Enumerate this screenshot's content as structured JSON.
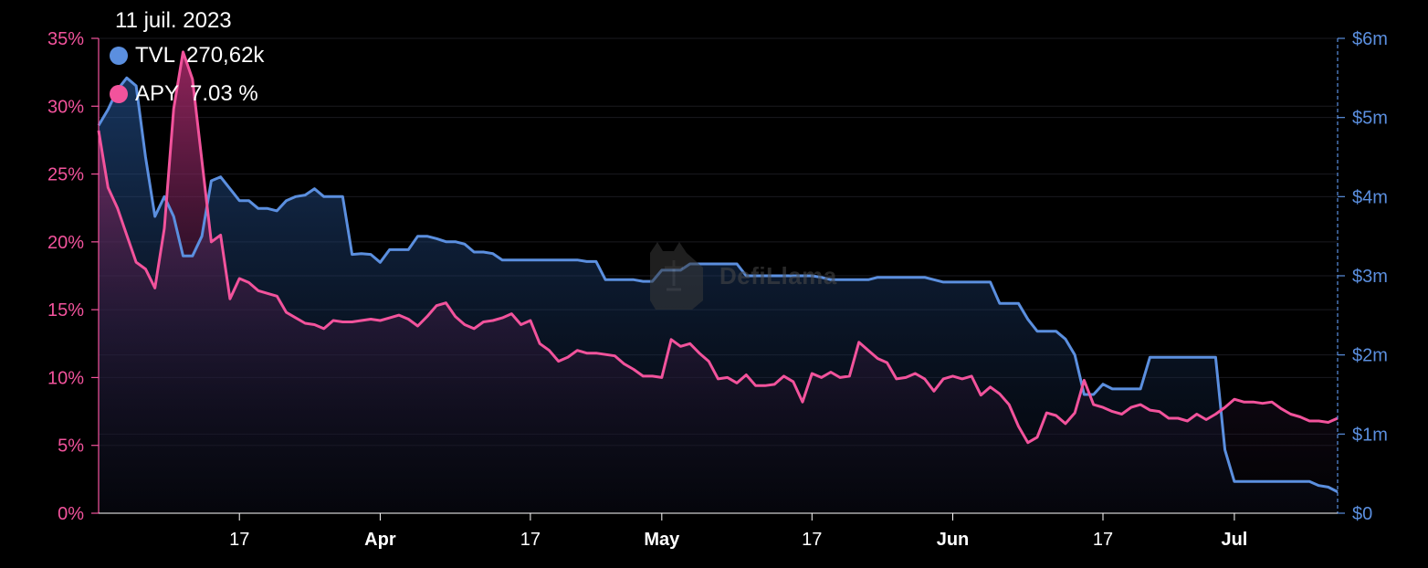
{
  "tooltip": {
    "date": "11 juil. 2023",
    "tvl_label": "TVL",
    "tvl_value": "270,62k",
    "apy_label": "APY",
    "apy_value": "7.03 %"
  },
  "watermark": "DefiLlama",
  "colors": {
    "tvl": "#5b8fdf",
    "apy": "#f2539c"
  },
  "chart_data": {
    "type": "area",
    "title": "",
    "legend_position": "top-left",
    "grid": true,
    "x_ticks": [
      {
        "label": "17",
        "pos": 17,
        "bold": false
      },
      {
        "label": "Apr",
        "pos": 32,
        "bold": true
      },
      {
        "label": "17",
        "pos": 48,
        "bold": false
      },
      {
        "label": "May",
        "pos": 62,
        "bold": true
      },
      {
        "label": "17",
        "pos": 78,
        "bold": false
      },
      {
        "label": "Jun",
        "pos": 93,
        "bold": true
      },
      {
        "label": "17",
        "pos": 109,
        "bold": false
      },
      {
        "label": "Jul",
        "pos": 123,
        "bold": true
      }
    ],
    "x_range": [
      2,
      134
    ],
    "y_left": {
      "label": "APY",
      "unit": "%",
      "range": [
        0,
        35
      ],
      "ticks": [
        "0%",
        "5%",
        "10%",
        "15%",
        "20%",
        "25%",
        "30%",
        "35%"
      ]
    },
    "y_right": {
      "label": "TVL",
      "unit": "$m",
      "range": [
        0,
        6
      ],
      "ticks": [
        "$0",
        "$1m",
        "$2m",
        "$3m",
        "$4m",
        "$5m",
        "$6m"
      ]
    },
    "series": [
      {
        "name": "TVL",
        "axis": "right",
        "points": [
          [
            2,
            4.9
          ],
          [
            3,
            5.1
          ],
          [
            4,
            5.35
          ],
          [
            5,
            5.5
          ],
          [
            6,
            5.4
          ],
          [
            7,
            4.5
          ],
          [
            8,
            3.75
          ],
          [
            9,
            4.0
          ],
          [
            10,
            3.75
          ],
          [
            11,
            3.25
          ],
          [
            12,
            3.25
          ],
          [
            13,
            3.5
          ],
          [
            14,
            4.2
          ],
          [
            15,
            4.25
          ],
          [
            16,
            4.1
          ],
          [
            17,
            3.95
          ],
          [
            18,
            3.95
          ],
          [
            19,
            3.85
          ],
          [
            20,
            3.85
          ],
          [
            21,
            3.82
          ],
          [
            22,
            3.95
          ],
          [
            23,
            4.0
          ],
          [
            24,
            4.02
          ],
          [
            25,
            4.1
          ],
          [
            26,
            4.0
          ],
          [
            27,
            4.0
          ],
          [
            28,
            4.0
          ],
          [
            29,
            3.27
          ],
          [
            30,
            3.28
          ],
          [
            31,
            3.27
          ],
          [
            32,
            3.17
          ],
          [
            33,
            3.33
          ],
          [
            34,
            3.33
          ],
          [
            35,
            3.33
          ],
          [
            36,
            3.5
          ],
          [
            37,
            3.5
          ],
          [
            38,
            3.47
          ],
          [
            39,
            3.43
          ],
          [
            40,
            3.43
          ],
          [
            41,
            3.4
          ],
          [
            42,
            3.3
          ],
          [
            43,
            3.3
          ],
          [
            44,
            3.28
          ],
          [
            45,
            3.2
          ],
          [
            46,
            3.2
          ],
          [
            47,
            3.2
          ],
          [
            48,
            3.2
          ],
          [
            49,
            3.2
          ],
          [
            50,
            3.2
          ],
          [
            51,
            3.2
          ],
          [
            52,
            3.2
          ],
          [
            53,
            3.2
          ],
          [
            54,
            3.18
          ],
          [
            55,
            3.18
          ],
          [
            56,
            2.95
          ],
          [
            57,
            2.95
          ],
          [
            58,
            2.95
          ],
          [
            59,
            2.95
          ],
          [
            60,
            2.93
          ],
          [
            61,
            2.93
          ],
          [
            62,
            3.07
          ],
          [
            63,
            3.07
          ],
          [
            64,
            3.07
          ],
          [
            65,
            3.15
          ],
          [
            66,
            3.15
          ],
          [
            67,
            3.15
          ],
          [
            68,
            3.15
          ],
          [
            69,
            3.15
          ],
          [
            70,
            3.15
          ],
          [
            71,
            3.0
          ],
          [
            72,
            3.0
          ],
          [
            73,
            3.0
          ],
          [
            74,
            3.0
          ],
          [
            75,
            3.0
          ],
          [
            76,
            3.0
          ],
          [
            77,
            3.0
          ],
          [
            78,
            3.0
          ],
          [
            79,
            2.98
          ],
          [
            80,
            2.95
          ],
          [
            81,
            2.95
          ],
          [
            82,
            2.95
          ],
          [
            83,
            2.95
          ],
          [
            84,
            2.95
          ],
          [
            85,
            2.98
          ],
          [
            86,
            2.98
          ],
          [
            87,
            2.98
          ],
          [
            88,
            2.98
          ],
          [
            89,
            2.98
          ],
          [
            90,
            2.98
          ],
          [
            91,
            2.95
          ],
          [
            92,
            2.92
          ],
          [
            93,
            2.92
          ],
          [
            94,
            2.92
          ],
          [
            95,
            2.92
          ],
          [
            96,
            2.92
          ],
          [
            97,
            2.92
          ],
          [
            98,
            2.65
          ],
          [
            99,
            2.65
          ],
          [
            100,
            2.65
          ],
          [
            101,
            2.45
          ],
          [
            102,
            2.3
          ],
          [
            103,
            2.3
          ],
          [
            104,
            2.3
          ],
          [
            105,
            2.2
          ],
          [
            106,
            2.0
          ],
          [
            107,
            1.5
          ],
          [
            108,
            1.5
          ],
          [
            109,
            1.63
          ],
          [
            110,
            1.57
          ],
          [
            111,
            1.57
          ],
          [
            112,
            1.57
          ],
          [
            113,
            1.57
          ],
          [
            114,
            1.97
          ],
          [
            115,
            1.97
          ],
          [
            116,
            1.97
          ],
          [
            117,
            1.97
          ],
          [
            118,
            1.97
          ],
          [
            119,
            1.97
          ],
          [
            120,
            1.97
          ],
          [
            121,
            1.97
          ],
          [
            122,
            0.8
          ],
          [
            123,
            0.4
          ],
          [
            124,
            0.4
          ],
          [
            125,
            0.4
          ],
          [
            126,
            0.4
          ],
          [
            127,
            0.4
          ],
          [
            128,
            0.4
          ],
          [
            129,
            0.4
          ],
          [
            130,
            0.4
          ],
          [
            131,
            0.4
          ],
          [
            132,
            0.35
          ],
          [
            133,
            0.33
          ],
          [
            134,
            0.27
          ]
        ]
      },
      {
        "name": "APY",
        "axis": "left",
        "points": [
          [
            2,
            28.2
          ],
          [
            3,
            24.0
          ],
          [
            4,
            22.5
          ],
          [
            5,
            20.5
          ],
          [
            6,
            18.5
          ],
          [
            7,
            18.0
          ],
          [
            8,
            16.6
          ],
          [
            9,
            21.0
          ],
          [
            10,
            29.8
          ],
          [
            11,
            34.0
          ],
          [
            12,
            32.0
          ],
          [
            13,
            26.0
          ],
          [
            14,
            20.0
          ],
          [
            15,
            20.5
          ],
          [
            16,
            15.8
          ],
          [
            17,
            17.3
          ],
          [
            18,
            17.0
          ],
          [
            19,
            16.4
          ],
          [
            20,
            16.2
          ],
          [
            21,
            16.0
          ],
          [
            22,
            14.8
          ],
          [
            23,
            14.4
          ],
          [
            24,
            14.0
          ],
          [
            25,
            13.9
          ],
          [
            26,
            13.6
          ],
          [
            27,
            14.2
          ],
          [
            28,
            14.1
          ],
          [
            29,
            14.1
          ],
          [
            30,
            14.2
          ],
          [
            31,
            14.3
          ],
          [
            32,
            14.2
          ],
          [
            33,
            14.4
          ],
          [
            34,
            14.6
          ],
          [
            35,
            14.3
          ],
          [
            36,
            13.8
          ],
          [
            37,
            14.5
          ],
          [
            38,
            15.3
          ],
          [
            39,
            15.5
          ],
          [
            40,
            14.5
          ],
          [
            41,
            13.9
          ],
          [
            42,
            13.6
          ],
          [
            43,
            14.1
          ],
          [
            44,
            14.2
          ],
          [
            45,
            14.4
          ],
          [
            46,
            14.7
          ],
          [
            47,
            13.9
          ],
          [
            48,
            14.2
          ],
          [
            49,
            12.5
          ],
          [
            50,
            12.0
          ],
          [
            51,
            11.2
          ],
          [
            52,
            11.5
          ],
          [
            53,
            12.0
          ],
          [
            54,
            11.8
          ],
          [
            55,
            11.8
          ],
          [
            56,
            11.7
          ],
          [
            57,
            11.6
          ],
          [
            58,
            11.0
          ],
          [
            59,
            10.6
          ],
          [
            60,
            10.1
          ],
          [
            61,
            10.1
          ],
          [
            62,
            10.0
          ],
          [
            63,
            12.8
          ],
          [
            64,
            12.3
          ],
          [
            65,
            12.5
          ],
          [
            66,
            11.8
          ],
          [
            67,
            11.2
          ],
          [
            68,
            9.9
          ],
          [
            69,
            10.0
          ],
          [
            70,
            9.6
          ],
          [
            71,
            10.2
          ],
          [
            72,
            9.4
          ],
          [
            73,
            9.4
          ],
          [
            74,
            9.5
          ],
          [
            75,
            10.1
          ],
          [
            76,
            9.7
          ],
          [
            77,
            8.2
          ],
          [
            78,
            10.3
          ],
          [
            79,
            10.0
          ],
          [
            80,
            10.4
          ],
          [
            81,
            10.0
          ],
          [
            82,
            10.1
          ],
          [
            83,
            12.6
          ],
          [
            84,
            12.0
          ],
          [
            85,
            11.4
          ],
          [
            86,
            11.1
          ],
          [
            87,
            9.9
          ],
          [
            88,
            10.0
          ],
          [
            89,
            10.3
          ],
          [
            90,
            9.9
          ],
          [
            91,
            9.0
          ],
          [
            92,
            9.9
          ],
          [
            93,
            10.1
          ],
          [
            94,
            9.9
          ],
          [
            95,
            10.1
          ],
          [
            96,
            8.7
          ],
          [
            97,
            9.3
          ],
          [
            98,
            8.8
          ],
          [
            99,
            8.0
          ],
          [
            100,
            6.4
          ],
          [
            101,
            5.2
          ],
          [
            102,
            5.6
          ],
          [
            103,
            7.4
          ],
          [
            104,
            7.2
          ],
          [
            105,
            6.6
          ],
          [
            106,
            7.4
          ],
          [
            107,
            9.8
          ],
          [
            108,
            8.0
          ],
          [
            109,
            7.8
          ],
          [
            110,
            7.5
          ],
          [
            111,
            7.3
          ],
          [
            112,
            7.8
          ],
          [
            113,
            8.0
          ],
          [
            114,
            7.6
          ],
          [
            115,
            7.5
          ],
          [
            116,
            7.0
          ],
          [
            117,
            7.0
          ],
          [
            118,
            6.8
          ],
          [
            119,
            7.3
          ],
          [
            120,
            6.9
          ],
          [
            121,
            7.3
          ],
          [
            122,
            7.8
          ],
          [
            123,
            8.4
          ],
          [
            124,
            8.2
          ],
          [
            125,
            8.2
          ],
          [
            126,
            8.1
          ],
          [
            127,
            8.2
          ],
          [
            128,
            7.7
          ],
          [
            129,
            7.3
          ],
          [
            130,
            7.1
          ],
          [
            131,
            6.8
          ],
          [
            132,
            6.8
          ],
          [
            133,
            6.7
          ],
          [
            134,
            7.0
          ]
        ]
      }
    ]
  }
}
